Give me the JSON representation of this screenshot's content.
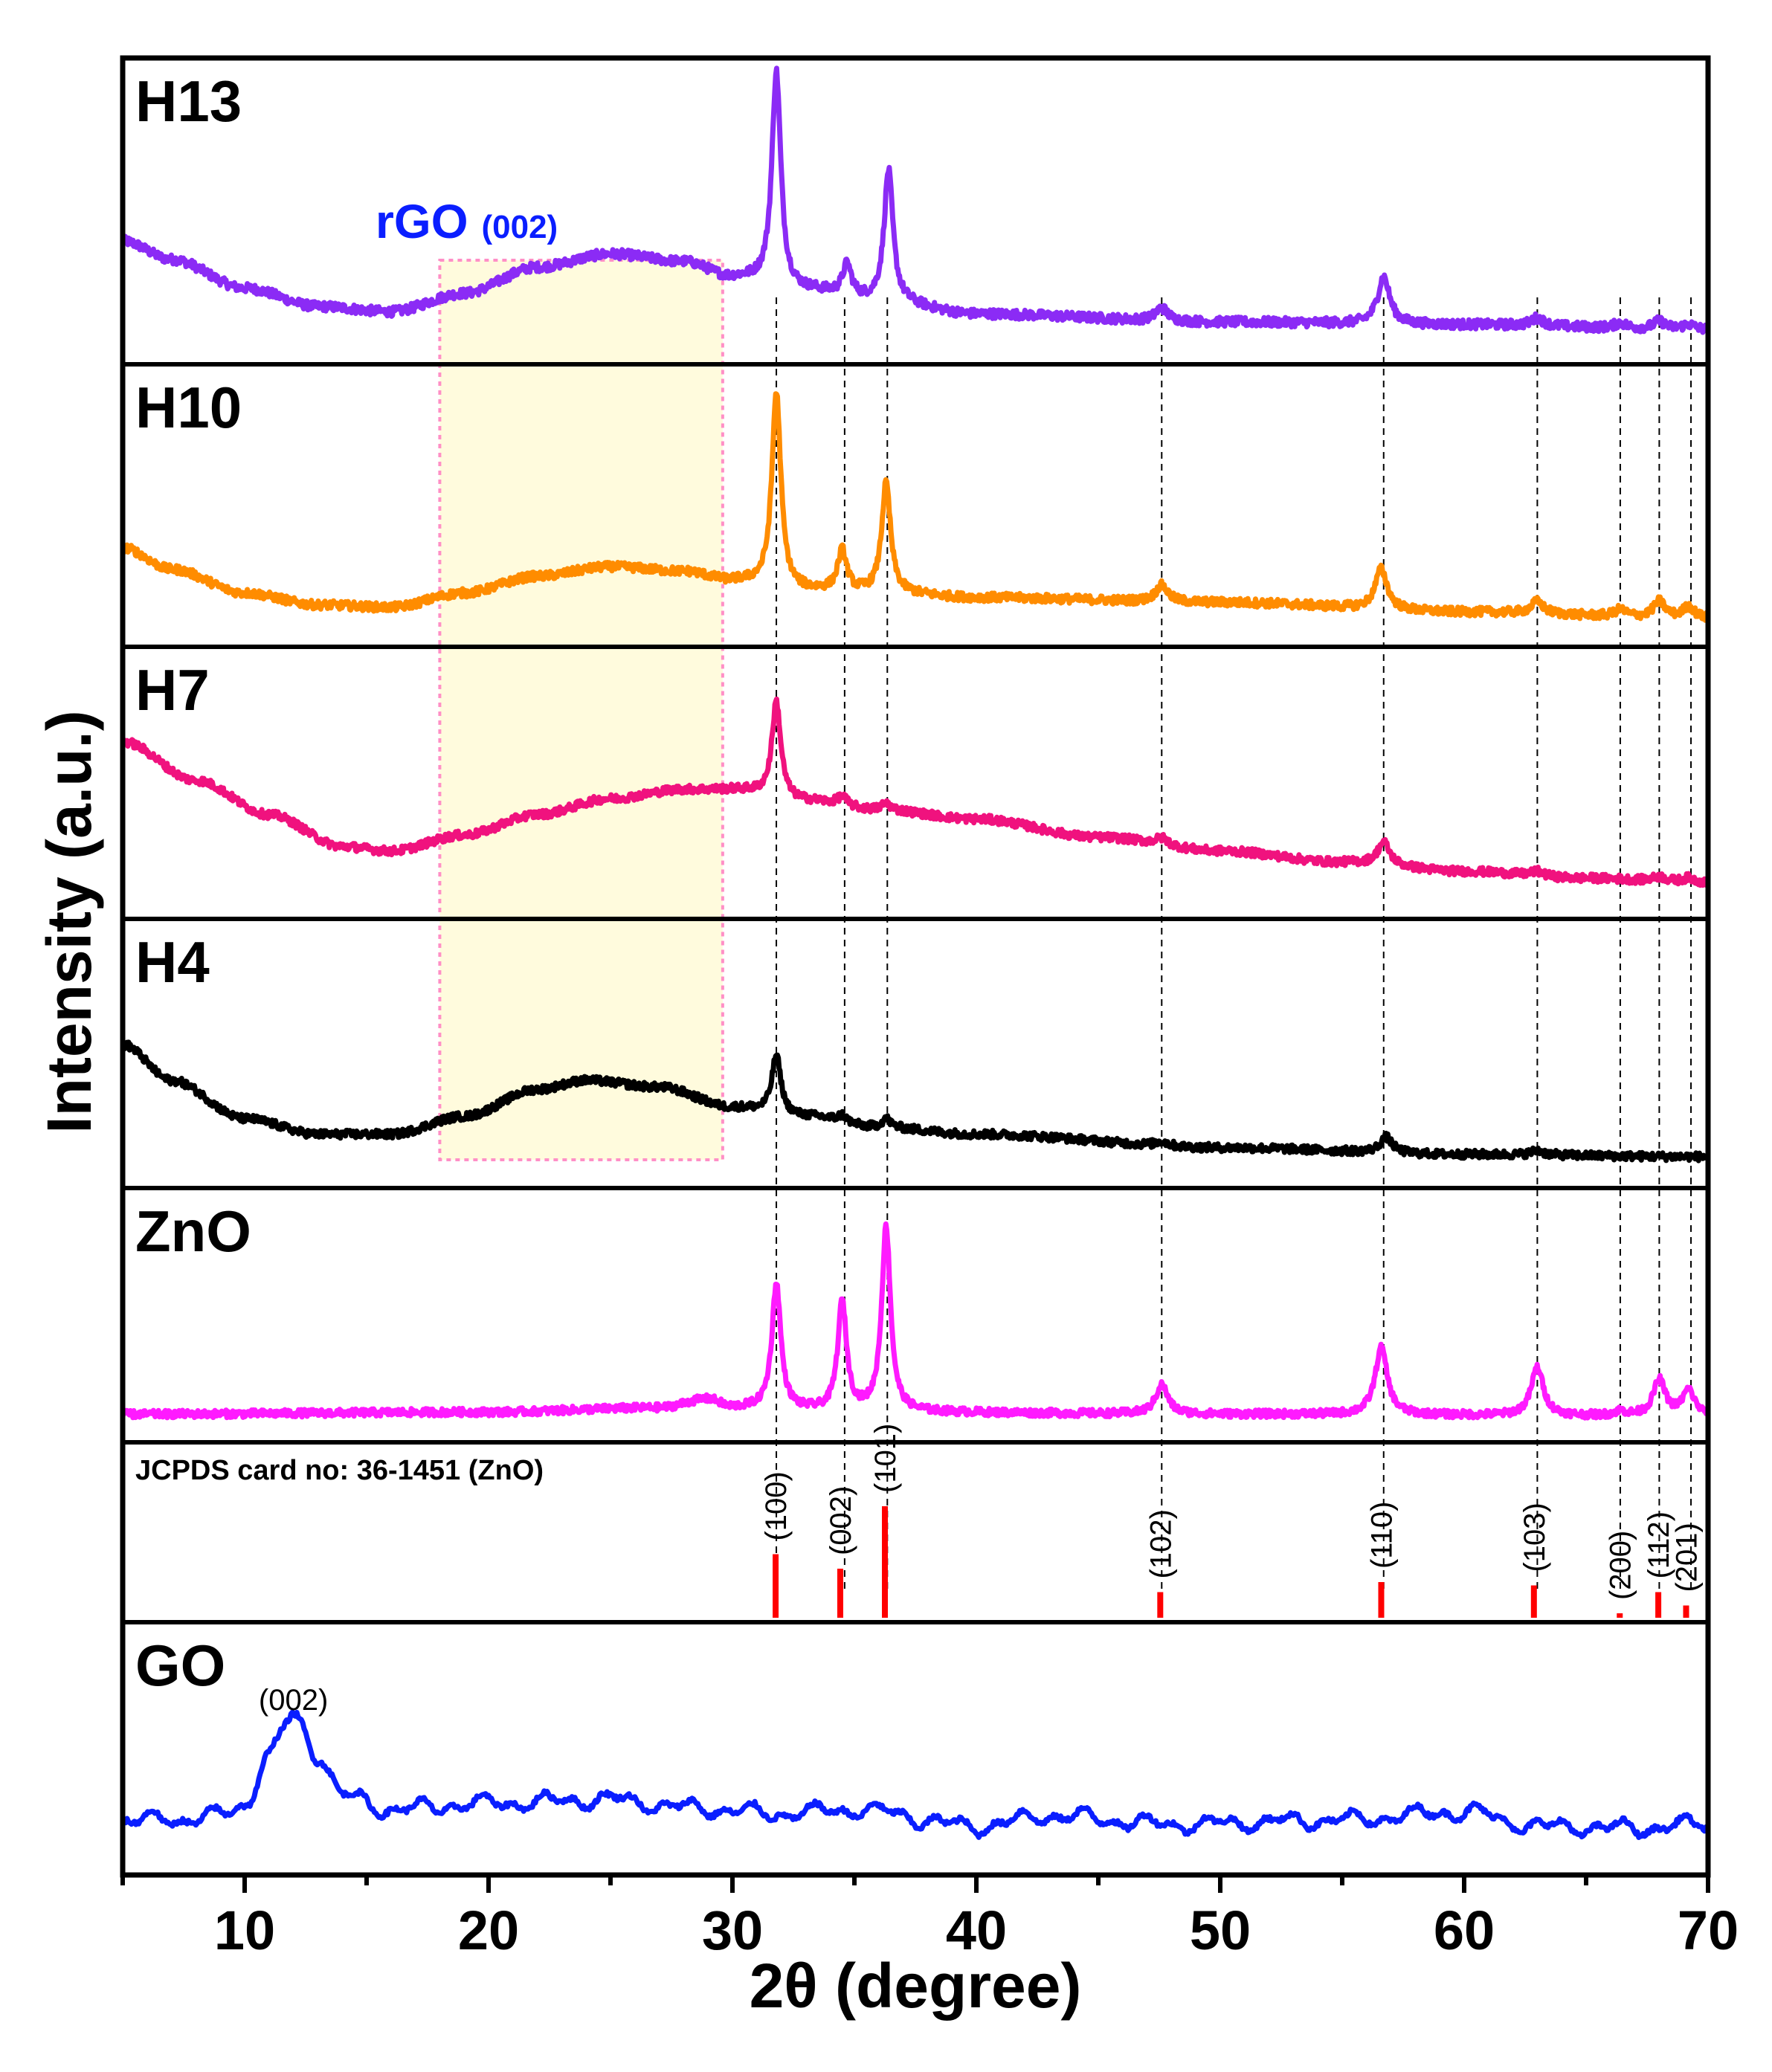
{
  "chart_data": {
    "type": "line",
    "title": "",
    "xlabel": "2θ (degree)",
    "ylabel": "Intensity (a.u.)",
    "xlim": [
      5,
      70
    ],
    "xticks": [
      10,
      20,
      30,
      40,
      50,
      60,
      70
    ],
    "grid": false,
    "panels": [
      {
        "name": "H13",
        "color": "#8B2BF5",
        "baseline": 0.08,
        "background": [
          [
            5,
            0.42
          ],
          [
            7,
            0.35
          ],
          [
            10,
            0.24
          ],
          [
            13,
            0.17
          ],
          [
            16,
            0.15
          ],
          [
            19,
            0.22
          ],
          [
            22,
            0.32
          ],
          [
            25,
            0.37
          ],
          [
            28,
            0.34
          ],
          [
            30,
            0.28
          ],
          [
            33,
            0.23
          ],
          [
            36,
            0.19
          ],
          [
            40,
            0.14
          ],
          [
            50,
            0.11
          ],
          [
            60,
            0.1
          ],
          [
            70,
            0.08
          ]
        ],
        "peaks": [
          [
            31.8,
            0.82
          ],
          [
            34.7,
            0.12
          ],
          [
            36.4,
            0.5
          ],
          [
            47.6,
            0.05
          ],
          [
            56.7,
            0.18
          ],
          [
            63.0,
            0.03
          ],
          [
            66.4,
            0.02
          ],
          [
            68.0,
            0.03
          ],
          [
            69.2,
            0.02
          ]
        ]
      },
      {
        "name": "H10",
        "color": "#FF8C00",
        "baseline": 0.1,
        "background": [
          [
            5,
            0.36
          ],
          [
            7,
            0.27
          ],
          [
            10,
            0.17
          ],
          [
            13,
            0.12
          ],
          [
            16,
            0.11
          ],
          [
            19,
            0.17
          ],
          [
            22,
            0.24
          ],
          [
            25,
            0.28
          ],
          [
            28,
            0.26
          ],
          [
            30,
            0.22
          ],
          [
            33,
            0.18
          ],
          [
            36,
            0.17
          ],
          [
            40,
            0.15
          ],
          [
            50,
            0.13
          ],
          [
            60,
            0.09
          ],
          [
            70,
            0.06
          ]
        ],
        "peaks": [
          [
            31.8,
            0.82
          ],
          [
            34.5,
            0.17
          ],
          [
            36.3,
            0.46
          ],
          [
            47.6,
            0.07
          ],
          [
            56.6,
            0.17
          ],
          [
            63.0,
            0.05
          ],
          [
            66.4,
            0.03
          ],
          [
            68.0,
            0.07
          ],
          [
            69.2,
            0.05
          ]
        ]
      },
      {
        "name": "H7",
        "color": "#F0127E",
        "baseline": 0.1,
        "background": [
          [
            5,
            0.72
          ],
          [
            8,
            0.55
          ],
          [
            11,
            0.4
          ],
          [
            14,
            0.26
          ],
          [
            16,
            0.24
          ],
          [
            19,
            0.31
          ],
          [
            22,
            0.4
          ],
          [
            25,
            0.47
          ],
          [
            28,
            0.51
          ],
          [
            30,
            0.51
          ],
          [
            33,
            0.46
          ],
          [
            36,
            0.42
          ],
          [
            40,
            0.38
          ],
          [
            45,
            0.3
          ],
          [
            50,
            0.24
          ],
          [
            55,
            0.19
          ],
          [
            60,
            0.15
          ],
          [
            65,
            0.12
          ],
          [
            70,
            0.1
          ]
        ],
        "peaks": [
          [
            31.8,
            0.42
          ],
          [
            34.5,
            0.04
          ],
          [
            36.3,
            0.03
          ],
          [
            47.6,
            0.03
          ],
          [
            56.7,
            0.1
          ],
          [
            63.0,
            0.02
          ],
          [
            68.0,
            0.02
          ],
          [
            69.2,
            0.02
          ]
        ]
      },
      {
        "name": "H4",
        "color": "#000000",
        "baseline": 0.08,
        "background": [
          [
            5,
            0.58
          ],
          [
            7,
            0.42
          ],
          [
            10,
            0.25
          ],
          [
            13,
            0.18
          ],
          [
            16,
            0.18
          ],
          [
            19,
            0.26
          ],
          [
            22,
            0.38
          ],
          [
            24,
            0.42
          ],
          [
            27,
            0.39
          ],
          [
            30,
            0.3
          ],
          [
            33,
            0.26
          ],
          [
            36,
            0.21
          ],
          [
            40,
            0.18
          ],
          [
            50,
            0.12
          ],
          [
            60,
            0.09
          ],
          [
            70,
            0.08
          ]
        ],
        "peaks": [
          [
            31.8,
            0.26
          ],
          [
            34.5,
            0.03
          ],
          [
            36.3,
            0.04
          ],
          [
            47.6,
            0.02
          ],
          [
            56.8,
            0.07
          ],
          [
            63.0,
            0.02
          ]
        ]
      },
      {
        "name": "ZnO",
        "color": "#FF1AFF",
        "baseline": 0.08,
        "background": [
          [
            5,
            0.07
          ],
          [
            20,
            0.08
          ],
          [
            27,
            0.1
          ],
          [
            29,
            0.14
          ],
          [
            30,
            0.1
          ],
          [
            35,
            0.08
          ],
          [
            50,
            0.07
          ],
          [
            70,
            0.06
          ]
        ],
        "peaks": [
          [
            31.8,
            0.6
          ],
          [
            34.5,
            0.52
          ],
          [
            36.3,
            0.88
          ],
          [
            47.6,
            0.14
          ],
          [
            56.6,
            0.32
          ],
          [
            63.0,
            0.23
          ],
          [
            66.4,
            0.02
          ],
          [
            68.0,
            0.17
          ],
          [
            69.2,
            0.12
          ]
        ]
      },
      {
        "name": "GO",
        "color": "#0A1EFF",
        "baseline": 0.1,
        "background": [
          [
            5,
            0.2
          ],
          [
            7,
            0.2
          ],
          [
            9,
            0.22
          ],
          [
            10,
            0.27
          ],
          [
            11,
            0.52
          ],
          [
            12,
            0.7
          ],
          [
            13,
            0.52
          ],
          [
            14,
            0.32
          ],
          [
            16,
            0.25
          ],
          [
            20,
            0.28
          ],
          [
            25,
            0.3
          ],
          [
            28,
            0.26
          ],
          [
            32,
            0.23
          ],
          [
            35,
            0.25
          ],
          [
            40,
            0.17
          ],
          [
            43,
            0.22
          ],
          [
            48,
            0.18
          ],
          [
            55,
            0.2
          ],
          [
            60,
            0.24
          ],
          [
            63,
            0.17
          ],
          [
            67,
            0.16
          ],
          [
            70,
            0.18
          ]
        ],
        "peaks": []
      }
    ],
    "reference": {
      "card": "JCPDS card no: 36-1451 (ZnO)",
      "color": "#FF0000",
      "peaks": [
        {
          "x": 31.77,
          "intensity": 57,
          "hkl": "(100)"
        },
        {
          "x": 34.42,
          "intensity": 44,
          "hkl": "(002)"
        },
        {
          "x": 36.25,
          "intensity": 100,
          "hkl": "(101)"
        },
        {
          "x": 47.54,
          "intensity": 23,
          "hkl": "(102)"
        },
        {
          "x": 56.6,
          "intensity": 32,
          "hkl": "(110)"
        },
        {
          "x": 62.86,
          "intensity": 29,
          "hkl": "(103)"
        },
        {
          "x": 66.38,
          "intensity": 4,
          "hkl": "(200)"
        },
        {
          "x": 67.96,
          "intensity": 23,
          "hkl": "(112)"
        },
        {
          "x": 69.1,
          "intensity": 11,
          "hkl": "(201)"
        }
      ]
    },
    "guide_lines_x": [
      31.8,
      34.6,
      36.35,
      47.6,
      56.7,
      63.0,
      66.4,
      68.0,
      69.3
    ],
    "annotations": [
      {
        "text_main": "rGO",
        "text_sub": "(002)",
        "x_range": [
          18,
          29.6
        ],
        "color": "#0A1EFF",
        "highlight": "#FFFBDD"
      },
      {
        "text": "(002)",
        "panel": "GO",
        "x": 12
      }
    ]
  }
}
